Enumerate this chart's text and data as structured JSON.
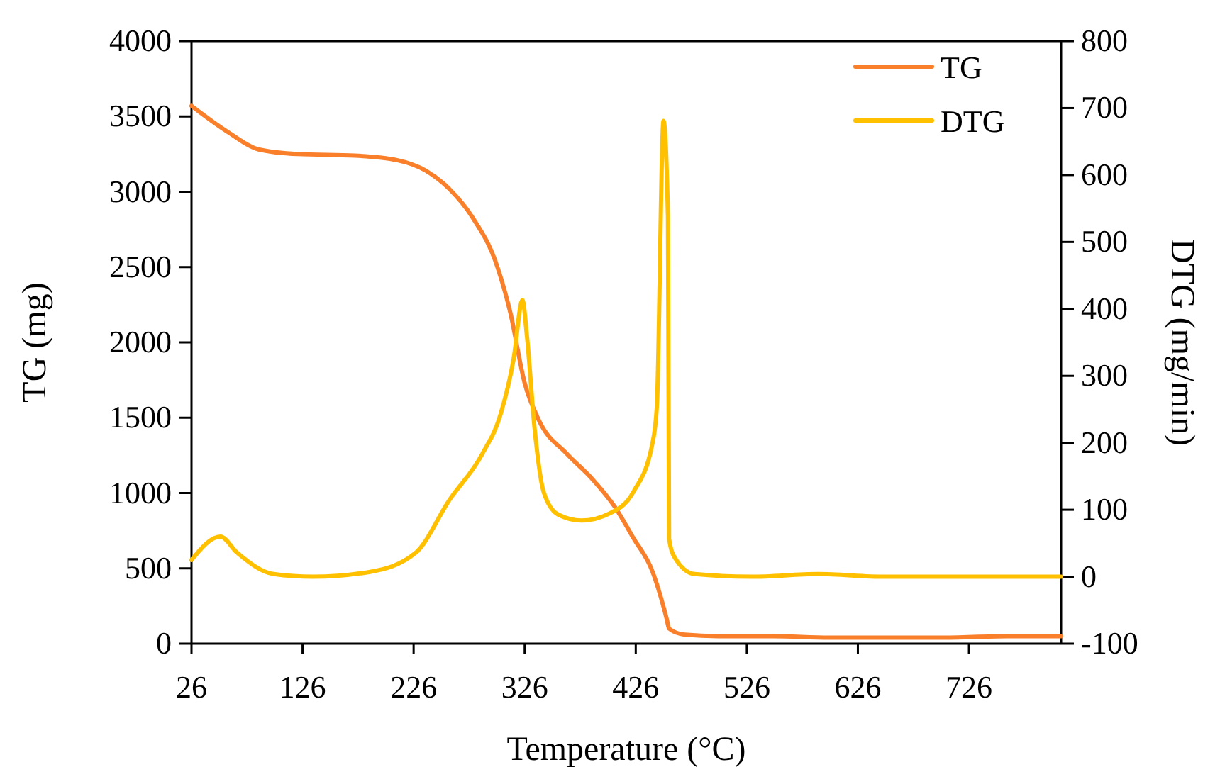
{
  "chart_data": {
    "type": "line",
    "xlabel": "Temperature (°C)",
    "ylabel": "TG (mg)",
    "y2label": "DTG (mg/min)",
    "xlim": [
      26,
      809
    ],
    "xticks": [
      26,
      126,
      226,
      326,
      426,
      526,
      626,
      726
    ],
    "ylim": [
      0,
      4000
    ],
    "yticks": [
      0,
      500,
      1000,
      1500,
      2000,
      2500,
      3000,
      3500,
      4000
    ],
    "y2lim": [
      -100,
      800
    ],
    "y2ticks": [
      -100,
      0,
      100,
      200,
      300,
      400,
      500,
      600,
      700,
      800
    ],
    "grid": false,
    "legend": "top right",
    "marker": "none",
    "line_style": "solid",
    "series": [
      {
        "name": "TG",
        "color": "#f97f2b",
        "x": [
          26,
          58,
          87,
          122,
          173,
          211,
          237,
          258,
          279,
          301,
          313,
          326,
          339,
          364,
          386,
          407,
          424,
          441,
          454,
          456,
          470,
          500,
          550,
          600,
          650,
          700,
          760,
          809
        ],
        "values": [
          3570,
          3400,
          3280,
          3250,
          3240,
          3210,
          3140,
          3020,
          2830,
          2510,
          2200,
          1730,
          1480,
          1260,
          1100,
          910,
          700,
          480,
          160,
          100,
          60,
          50,
          50,
          40,
          40,
          40,
          50,
          50
        ]
      },
      {
        "name": "DTG",
        "color": "#ffc000",
        "axis": "y2",
        "x": [
          26,
          52,
          67,
          100,
          135,
          186,
          228,
          258,
          288,
          304,
          316,
          324,
          328,
          335,
          343,
          356,
          377,
          403,
          424,
          441,
          445,
          451,
          455,
          456,
          461,
          479,
          530,
          590,
          650,
          720,
          809
        ],
        "values": [
          25,
          60,
          36,
          4,
          0,
          7,
          36,
          114,
          184,
          241,
          325,
          413,
          360,
          220,
          127,
          93,
          84,
          95,
          127,
          199,
          254,
          681,
          537,
          57,
          29,
          4,
          0,
          4,
          0,
          0,
          0
        ]
      }
    ]
  }
}
